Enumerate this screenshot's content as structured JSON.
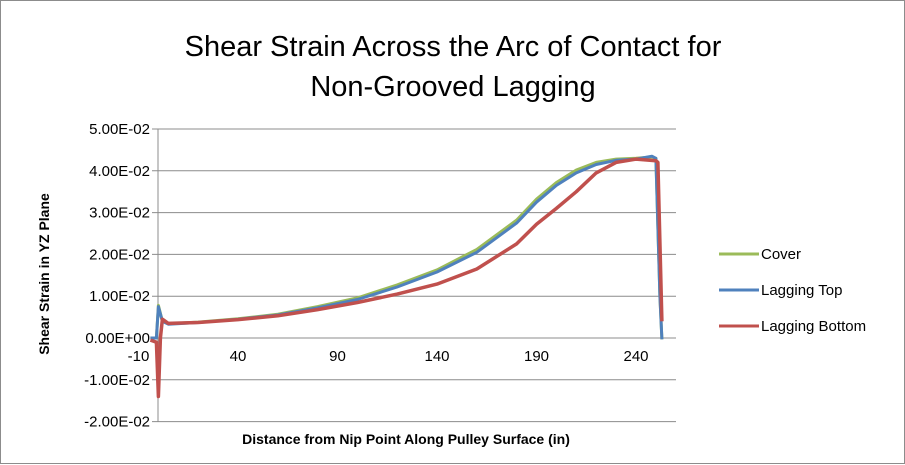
{
  "chart_data": {
    "type": "line",
    "title": [
      "Shear Strain Across the Arc of Contact for",
      "Non-Grooved Lagging"
    ],
    "xlabel": "Distance from Nip Point Along Pulley Surface (in)",
    "ylabel": "Shear Strain in YZ Plane",
    "xlim": [
      -10,
      260
    ],
    "ylim": [
      -0.02,
      0.05
    ],
    "x_tick_labels": [
      "-10",
      "40",
      "90",
      "140",
      "190",
      "240"
    ],
    "x_ticks": [
      -10,
      40,
      90,
      140,
      190,
      240
    ],
    "y_tick_labels": [
      "5.00E-02",
      "4.00E-02",
      "3.00E-02",
      "2.00E-02",
      "1.00E-02",
      "0.00E+00",
      "-1.00E-02",
      "-2.00E-02"
    ],
    "y_ticks": [
      0.05,
      0.04,
      0.03,
      0.02,
      0.01,
      0,
      -0.01,
      -0.02
    ],
    "grid": "horizontal",
    "legend_position": "right",
    "series": [
      {
        "name": "Cover",
        "color": "#9bbb59",
        "x": [
          -4,
          -1,
          0,
          2,
          5,
          20,
          40,
          60,
          80,
          100,
          120,
          140,
          160,
          180,
          190,
          200,
          210,
          220,
          230,
          240,
          248,
          250,
          252,
          253
        ],
        "y": [
          0,
          0,
          0.0078,
          0.004,
          0.0034,
          0.0038,
          0.0046,
          0.0057,
          0.0075,
          0.0096,
          0.0127,
          0.0163,
          0.0212,
          0.0282,
          0.0332,
          0.0372,
          0.0402,
          0.042,
          0.0428,
          0.043,
          0.0433,
          0.043,
          0.01,
          -0.0003
        ]
      },
      {
        "name": "Lagging Top",
        "color": "#4f81bd",
        "x": [
          -4,
          -1,
          0,
          2,
          5,
          20,
          40,
          60,
          80,
          100,
          120,
          140,
          160,
          180,
          190,
          200,
          210,
          220,
          230,
          240,
          248,
          250,
          252,
          253
        ],
        "y": [
          0,
          0,
          0.0075,
          0.004,
          0.0033,
          0.0037,
          0.0045,
          0.0055,
          0.0072,
          0.0092,
          0.0122,
          0.0158,
          0.0205,
          0.0275,
          0.0325,
          0.0365,
          0.0395,
          0.0415,
          0.0425,
          0.0428,
          0.0435,
          0.043,
          0.01,
          -0.0003
        ]
      },
      {
        "name": "Lagging Bottom",
        "color": "#c0504d",
        "x": [
          -4,
          -1,
          0,
          1,
          2,
          5,
          20,
          40,
          60,
          80,
          100,
          120,
          140,
          160,
          180,
          190,
          200,
          210,
          220,
          230,
          240,
          250,
          251,
          253
        ],
        "y": [
          -0.0005,
          -0.001,
          -0.014,
          0,
          0.0045,
          0.0035,
          0.0037,
          0.0044,
          0.0053,
          0.0068,
          0.0085,
          0.0105,
          0.0129,
          0.0165,
          0.0225,
          0.0272,
          0.031,
          0.035,
          0.0395,
          0.042,
          0.0428,
          0.0424,
          0.042,
          0.004
        ]
      }
    ]
  }
}
